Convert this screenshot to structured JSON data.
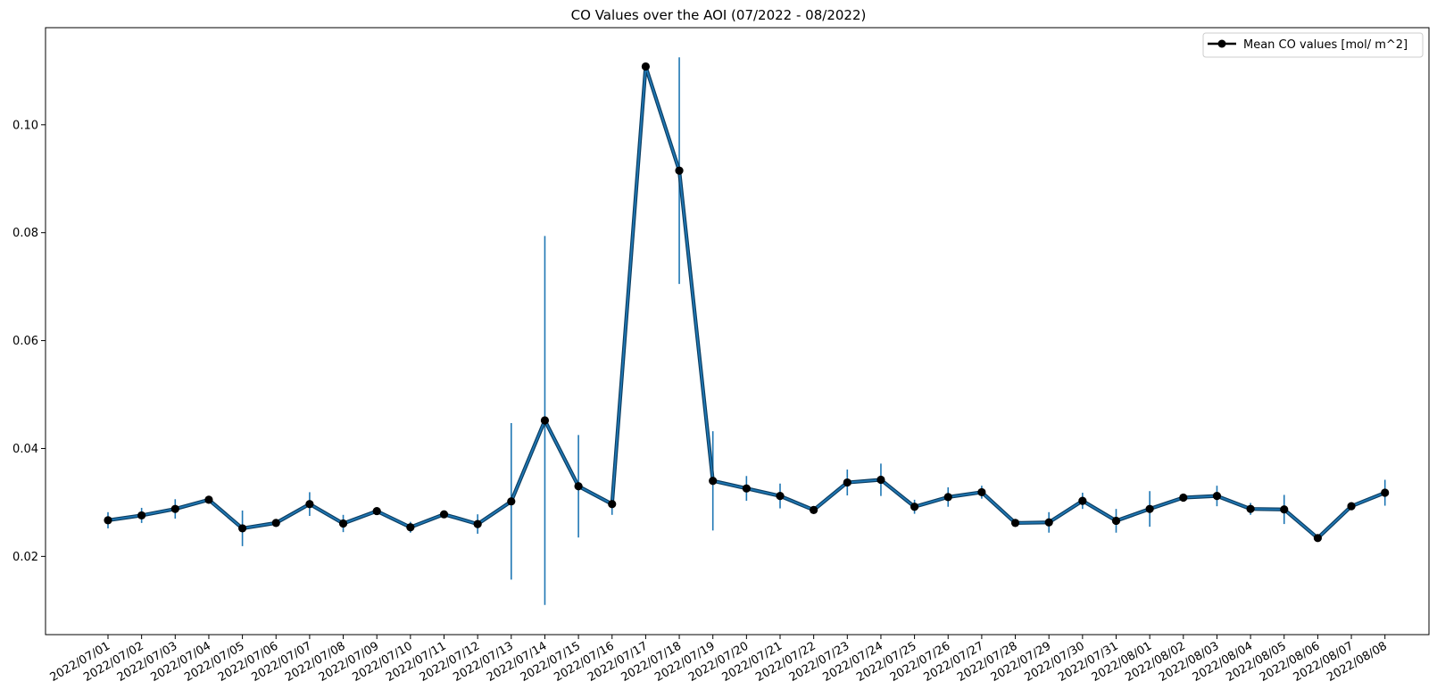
{
  "chart_data": {
    "type": "line",
    "title": "CO Values over the AOI (07/2022 - 08/2022)",
    "xlabel": "",
    "ylabel": "",
    "ylim": [
      0.0055,
      0.118
    ],
    "yticks": [
      0.02,
      0.04,
      0.06,
      0.08,
      0.1
    ],
    "ytick_labels": [
      "0.02",
      "0.04",
      "0.06",
      "0.08",
      "0.10"
    ],
    "grid": false,
    "legend_position": "top-right",
    "colors": {
      "line": "#1f77b4",
      "error": "#1f77b4",
      "marker": "#000000"
    },
    "categories": [
      "2022/07/01",
      "2022/07/02",
      "2022/07/03",
      "2022/07/04",
      "2022/07/05",
      "2022/07/06",
      "2022/07/07",
      "2022/07/08",
      "2022/07/09",
      "2022/07/10",
      "2022/07/11",
      "2022/07/12",
      "2022/07/13",
      "2022/07/14",
      "2022/07/15",
      "2022/07/16",
      "2022/07/17",
      "2022/07/18",
      "2022/07/19",
      "2022/07/20",
      "2022/07/21",
      "2022/07/22",
      "2022/07/23",
      "2022/07/24",
      "2022/07/25",
      "2022/07/26",
      "2022/07/27",
      "2022/07/28",
      "2022/07/29",
      "2022/07/30",
      "2022/07/31",
      "2022/08/01",
      "2022/08/02",
      "2022/08/03",
      "2022/08/04",
      "2022/08/05",
      "2022/08/06",
      "2022/08/07",
      "2022/08/08"
    ],
    "series": [
      {
        "name": "Mean CO values [mol/ m^2]",
        "values": [
          0.0267,
          0.0276,
          0.0288,
          0.0305,
          0.0252,
          0.0262,
          0.0297,
          0.0261,
          0.0284,
          0.0254,
          0.0278,
          0.026,
          0.0302,
          0.0452,
          0.033,
          0.0297,
          0.1108,
          0.0915,
          0.034,
          0.0326,
          0.0312,
          0.0286,
          0.0337,
          0.0342,
          0.0292,
          0.031,
          0.0319,
          0.0262,
          0.0263,
          0.0303,
          0.0266,
          0.0288,
          0.0309,
          0.0312,
          0.0288,
          0.0287,
          0.0234,
          0.0293,
          0.0318
        ],
        "errors": [
          0.0015,
          0.0014,
          0.0018,
          0.0006,
          0.0033,
          0.0007,
          0.0022,
          0.0016,
          0.0007,
          0.001,
          0.0006,
          0.0018,
          0.0145,
          0.0342,
          0.0095,
          0.002,
          0.0005,
          0.021,
          0.0092,
          0.0023,
          0.0023,
          0.0005,
          0.0024,
          0.003,
          0.0013,
          0.0018,
          0.0012,
          0.0005,
          0.0019,
          0.0015,
          0.0022,
          0.0033,
          0.0006,
          0.0019,
          0.0011,
          0.0027,
          0.0005,
          0.0006,
          0.0024
        ]
      }
    ]
  }
}
